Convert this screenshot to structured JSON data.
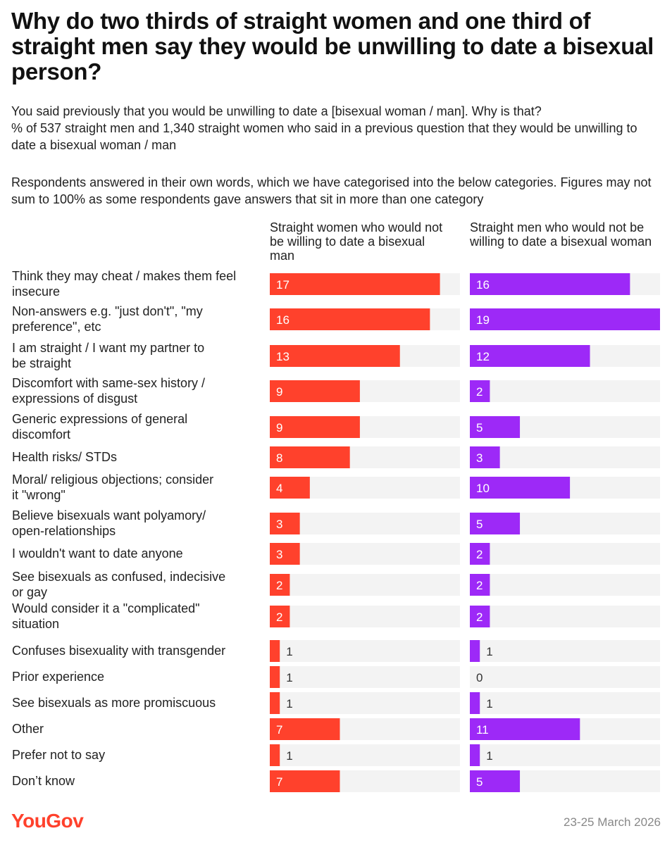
{
  "title": "Why do two thirds of straight women and one third of straight men say they would be unwilling to date a bisexual person?",
  "question": "You said previously that you would be unwilling to date a [bisexual woman / man]. Why is that?",
  "base": "% of 537 straight men and 1,340 straight women who said in a previous question that they would be unwilling to date a bisexual woman / man",
  "note": "Respondents answered in their own words, which we have categorised into the below categories. Figures may not sum to 100% as some respondents gave answers that sit in more than one category",
  "colors": {
    "women": "#ff412c",
    "men": "#9d29f7",
    "track": "#f3f3f3"
  },
  "chart_data": {
    "type": "bar",
    "orientation": "horizontal",
    "xlim": [
      0,
      19
    ],
    "categories": [
      "Think they may cheat / makes them feel insecure",
      "Non-answers e.g. \"just don't\", \"my preference\", etc",
      "I am straight / I want my partner to be straight",
      "Discomfort with same-sex history / expressions of disgust",
      "Generic expressions of general discomfort",
      "Health risks/ STDs",
      "Moral/ religious objections; consider it \"wrong\"",
      "Believe bisexuals want polyamory/ open-relationships",
      "I wouldn't want to date anyone",
      "See bisexuals as confused, indecisive or gay",
      "Would consider it a \"complicated\" situation",
      "Confuses bisexuality with transgender",
      "Prior experience",
      "See bisexuals as more promiscuous",
      "Other",
      "Prefer not to say",
      "Don’t know"
    ],
    "series": [
      {
        "name": "Straight women who would not be willing to date a bisexual man",
        "values": [
          17,
          16,
          13,
          9,
          9,
          8,
          4,
          3,
          3,
          2,
          2,
          1,
          1,
          1,
          7,
          1,
          7
        ]
      },
      {
        "name": "Straight men who would not be willing to date a bisexual woman",
        "values": [
          16,
          19,
          12,
          2,
          5,
          3,
          10,
          5,
          2,
          2,
          2,
          1,
          0,
          1,
          11,
          1,
          5
        ]
      }
    ]
  },
  "footer": {
    "logo": "YouGov",
    "date": "23-25 March 2026"
  }
}
